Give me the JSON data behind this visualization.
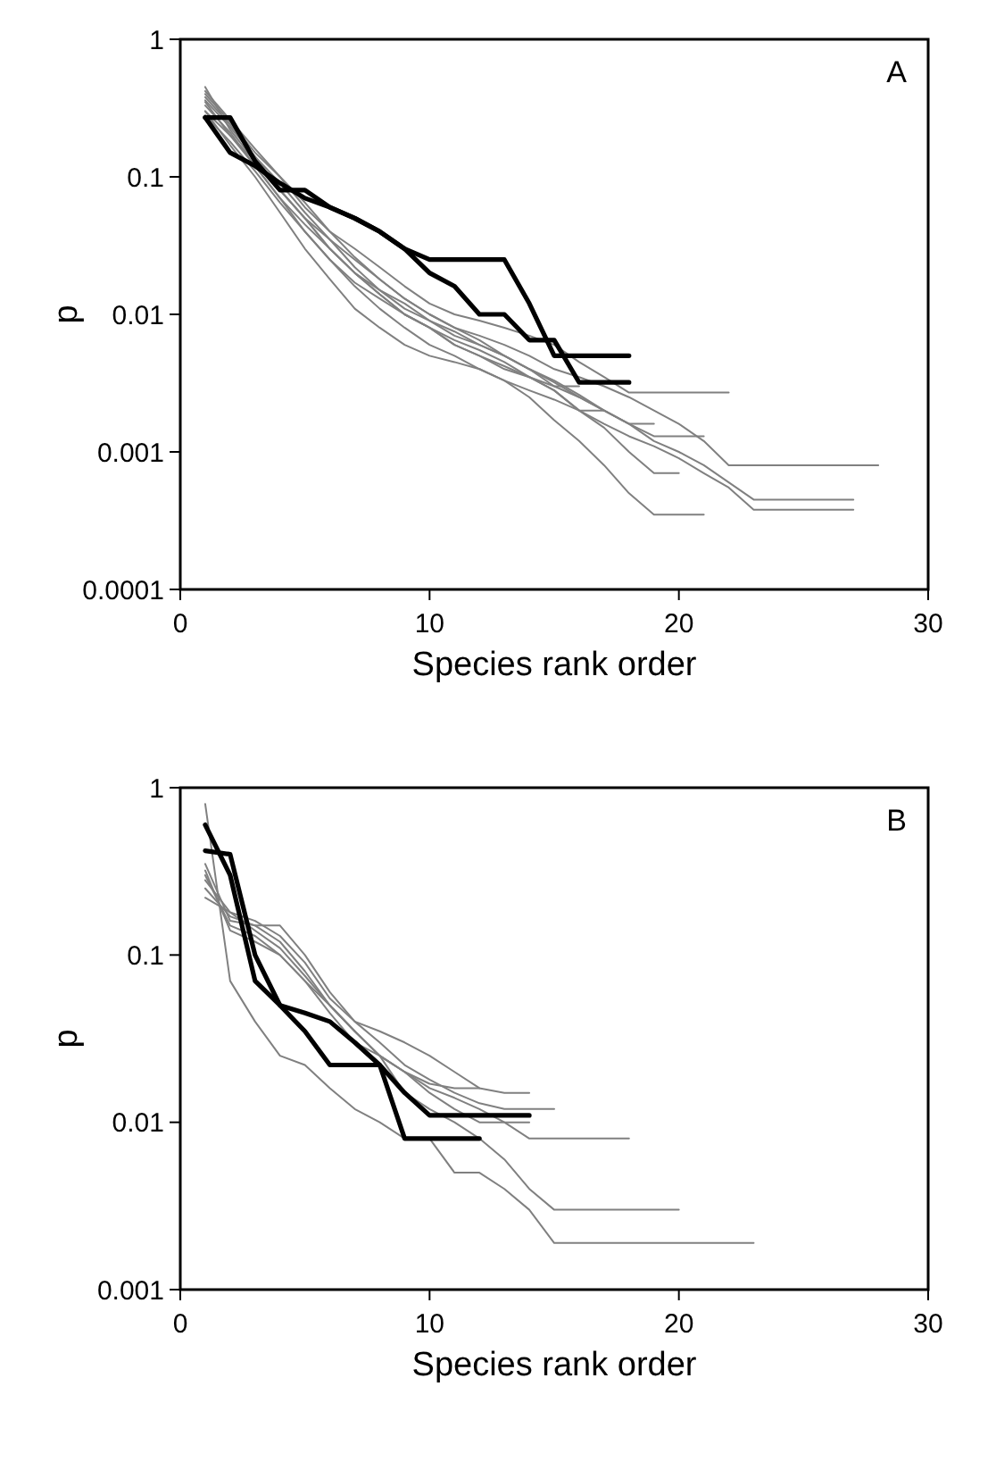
{
  "chart_data": [
    {
      "type": "line",
      "xlabel": "Species rank order",
      "ylabel": "p",
      "annotations": [
        "A"
      ],
      "log": "y",
      "xlim": [
        0,
        30
      ],
      "xticks": [
        0,
        10,
        20,
        30
      ],
      "ylim": [
        0.0001,
        1
      ],
      "yticks": [
        0.0001,
        0.001,
        0.01,
        0.1,
        1
      ],
      "grid": false,
      "marker": "none",
      "line_style": "solid",
      "x": [
        1,
        2,
        3,
        4,
        5,
        6,
        7,
        8,
        9,
        10,
        11,
        12,
        13,
        14,
        15,
        16,
        17,
        18,
        19,
        20,
        21,
        22,
        23,
        24,
        25,
        26,
        27,
        28
      ],
      "series": [
        {
          "color": "#808080",
          "values": [
            0.4,
            0.25,
            0.15,
            0.1,
            0.06,
            0.04,
            0.03,
            0.022,
            0.016,
            0.012,
            0.01,
            0.009,
            0.008,
            0.007,
            0.006,
            0.0045,
            0.0035,
            0.0027,
            0.0027,
            0.0027,
            0.0027,
            0.0027,
            null,
            null,
            null,
            null,
            null,
            null
          ]
        },
        {
          "color": "#808080",
          "values": [
            0.35,
            0.2,
            0.13,
            0.08,
            0.05,
            0.035,
            0.025,
            0.018,
            0.013,
            0.01,
            0.008,
            0.007,
            0.006,
            0.005,
            0.004,
            0.0035,
            0.003,
            0.0025,
            0.002,
            0.0016,
            0.0012,
            0.0008,
            0.0008,
            0.0008,
            0.0008,
            0.0008,
            0.0008,
            0.0008
          ]
        },
        {
          "color": "#808080",
          "values": [
            0.3,
            0.2,
            0.12,
            0.07,
            0.045,
            0.03,
            0.02,
            0.014,
            0.01,
            0.008,
            0.006,
            0.005,
            0.004,
            0.0035,
            0.003,
            0.0025,
            0.002,
            0.0016,
            0.0012,
            0.001,
            0.0008,
            0.0006,
            0.00045,
            0.00045,
            0.00045,
            0.00045,
            0.00045,
            null
          ]
        },
        {
          "color": "#808080",
          "values": [
            0.28,
            0.18,
            0.11,
            0.065,
            0.04,
            0.025,
            0.016,
            0.011,
            0.008,
            0.006,
            0.005,
            0.004,
            0.0033,
            0.0028,
            0.0024,
            0.002,
            0.0016,
            0.0013,
            0.0011,
            0.0009,
            0.0007,
            0.00055,
            0.00038,
            0.00038,
            0.00038,
            0.00038,
            0.00038,
            null
          ]
        },
        {
          "color": "#808080",
          "values": [
            0.3,
            0.17,
            0.1,
            0.055,
            0.03,
            0.018,
            0.011,
            0.008,
            0.006,
            0.005,
            0.0045,
            0.004,
            0.0033,
            0.0025,
            0.0017,
            0.0012,
            0.0008,
            0.0005,
            0.00035,
            0.00035,
            0.00035,
            null,
            null,
            null,
            null,
            null,
            null,
            null
          ]
        },
        {
          "color": "#808080",
          "values": [
            0.45,
            0.22,
            0.13,
            0.08,
            0.05,
            0.03,
            0.02,
            0.014,
            0.01,
            0.008,
            0.006,
            0.005,
            0.0042,
            0.0035,
            0.0028,
            0.002,
            0.0015,
            0.001,
            0.0007,
            0.0007,
            null,
            null,
            null,
            null,
            null,
            null,
            null,
            null
          ]
        },
        {
          "color": "#808080",
          "values": [
            0.38,
            0.24,
            0.14,
            0.09,
            0.055,
            0.035,
            0.022,
            0.015,
            0.011,
            0.009,
            0.007,
            0.006,
            0.005,
            0.004,
            0.0033,
            0.0026,
            0.002,
            0.0016,
            0.0016,
            null,
            null,
            null,
            null,
            null,
            null,
            null,
            null,
            null
          ]
        },
        {
          "color": "#808080",
          "values": [
            0.33,
            0.21,
            0.12,
            0.07,
            0.04,
            0.025,
            0.017,
            0.013,
            0.01,
            0.008,
            0.0065,
            0.0055,
            0.0045,
            0.0035,
            0.0028,
            0.002,
            0.002,
            null,
            null,
            null,
            null,
            null,
            null,
            null,
            null,
            null,
            null,
            null
          ]
        },
        {
          "color": "#808080",
          "values": [
            0.36,
            0.23,
            0.14,
            0.08,
            0.05,
            0.03,
            0.02,
            0.015,
            0.012,
            0.009,
            0.0075,
            0.006,
            0.005,
            0.004,
            0.0032,
            0.0025,
            0.002,
            0.0016,
            0.0013,
            0.0013,
            0.0013,
            null,
            null,
            null,
            null,
            null,
            null,
            null
          ]
        },
        {
          "color": "#808080",
          "values": [
            0.42,
            0.26,
            0.16,
            0.1,
            0.065,
            0.04,
            0.026,
            0.018,
            0.013,
            0.01,
            0.008,
            0.0065,
            0.005,
            0.004,
            0.003,
            0.003,
            null,
            null,
            null,
            null,
            null,
            null,
            null,
            null,
            null,
            null,
            null,
            null
          ]
        },
        {
          "color": "#000000",
          "values": [
            0.27,
            0.27,
            0.13,
            0.08,
            0.08,
            0.06,
            0.05,
            0.04,
            0.03,
            0.025,
            0.025,
            0.025,
            0.025,
            0.012,
            0.005,
            0.005,
            0.005,
            0.005,
            null,
            null,
            null,
            null,
            null,
            null,
            null,
            null,
            null,
            null
          ]
        },
        {
          "color": "#000000",
          "values": [
            0.27,
            0.15,
            0.12,
            0.09,
            0.07,
            0.06,
            0.05,
            0.04,
            0.03,
            0.02,
            0.016,
            0.01,
            0.01,
            0.0065,
            0.0065,
            0.0032,
            0.0032,
            0.0032,
            null,
            null,
            null,
            null,
            null,
            null,
            null,
            null,
            null,
            null
          ]
        }
      ]
    },
    {
      "type": "line",
      "xlabel": "Species rank order",
      "ylabel": "p",
      "annotations": [
        "B"
      ],
      "log": "y",
      "xlim": [
        0,
        30
      ],
      "xticks": [
        0,
        10,
        20,
        30
      ],
      "ylim": [
        0.001,
        1
      ],
      "yticks": [
        0.001,
        0.01,
        0.1,
        1
      ],
      "grid": false,
      "marker": "none",
      "line_style": "solid",
      "x": [
        1,
        2,
        3,
        4,
        5,
        6,
        7,
        8,
        9,
        10,
        11,
        12,
        13,
        14,
        15,
        16,
        17,
        18,
        19,
        20,
        21,
        22,
        23
      ],
      "series": [
        {
          "color": "#808080",
          "values": [
            0.8,
            0.07,
            0.04,
            0.025,
            0.022,
            0.016,
            0.012,
            0.01,
            0.008,
            0.008,
            0.005,
            0.005,
            0.004,
            0.003,
            0.0019,
            0.0019,
            0.0019,
            0.0019,
            0.0019,
            0.0019,
            0.0019,
            0.0019,
            0.0019
          ]
        },
        {
          "color": "#808080",
          "values": [
            0.3,
            0.15,
            0.13,
            0.1,
            0.07,
            0.05,
            0.035,
            0.025,
            0.015,
            0.012,
            0.01,
            0.008,
            0.006,
            0.004,
            0.003,
            0.003,
            0.003,
            0.003,
            0.003,
            0.003,
            null,
            null,
            null
          ]
        },
        {
          "color": "#808080",
          "values": [
            0.35,
            0.16,
            0.15,
            0.12,
            0.08,
            0.05,
            0.035,
            0.025,
            0.02,
            0.016,
            0.014,
            0.012,
            0.01,
            0.008,
            0.008,
            0.008,
            0.008,
            0.008,
            null,
            null,
            null,
            null,
            null
          ]
        },
        {
          "color": "#808080",
          "values": [
            0.25,
            0.17,
            0.15,
            0.15,
            0.1,
            0.06,
            0.04,
            0.035,
            0.03,
            0.025,
            0.02,
            0.016,
            0.015,
            0.015,
            null,
            null,
            null,
            null,
            null,
            null,
            null,
            null,
            null
          ]
        },
        {
          "color": "#808080",
          "values": [
            0.28,
            0.18,
            0.16,
            0.13,
            0.09,
            0.055,
            0.04,
            0.03,
            0.022,
            0.018,
            0.015,
            0.013,
            0.012,
            0.012,
            0.012,
            null,
            null,
            null,
            null,
            null,
            null,
            null,
            null
          ]
        },
        {
          "color": "#808080",
          "values": [
            0.22,
            0.18,
            0.14,
            0.11,
            0.075,
            0.05,
            0.035,
            0.025,
            0.02,
            0.017,
            0.016,
            0.016,
            null,
            null,
            null,
            null,
            null,
            null,
            null,
            null,
            null,
            null,
            null
          ]
        },
        {
          "color": "#808080",
          "values": [
            0.32,
            0.14,
            0.12,
            0.1,
            0.07,
            0.045,
            0.03,
            0.025,
            0.02,
            0.015,
            0.012,
            0.01,
            0.01,
            0.01,
            null,
            null,
            null,
            null,
            null,
            null,
            null,
            null,
            null
          ]
        },
        {
          "color": "#000000",
          "values": [
            0.6,
            0.3,
            0.07,
            0.05,
            0.045,
            0.04,
            0.03,
            0.022,
            0.015,
            0.011,
            0.011,
            0.011,
            0.011,
            0.011,
            null,
            null,
            null,
            null,
            null,
            null,
            null,
            null,
            null
          ]
        },
        {
          "color": "#000000",
          "values": [
            0.42,
            0.4,
            0.1,
            0.05,
            0.035,
            0.022,
            0.022,
            0.022,
            0.008,
            0.008,
            0.008,
            0.008,
            null,
            null,
            null,
            null,
            null,
            null,
            null,
            null,
            null,
            null,
            null
          ]
        }
      ]
    }
  ]
}
